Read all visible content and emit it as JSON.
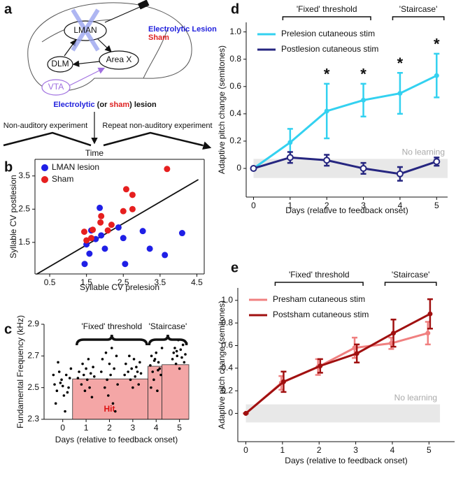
{
  "panel_labels": [
    "a",
    "b",
    "c",
    "d",
    "e"
  ],
  "diagram": {
    "nuclei": [
      "LMAN",
      "DLM",
      "Area X",
      "VTA"
    ],
    "legend": [
      "Electrolytic Lesion",
      "Sham"
    ],
    "lesion_line": [
      "Electrolytic",
      " (or ",
      "sham",
      ") lesion"
    ],
    "experiments": [
      "Non-auditory experiment",
      "Repeat non-auditory experiment"
    ],
    "time_label": "Time"
  },
  "chart_data": [
    {
      "type": "scatter",
      "xlabel": "Syllable CV prelesion",
      "ylabel": "Syllable CV postlesion",
      "xlim": [
        0.1,
        4.7
      ],
      "ylim": [
        0.55,
        4.0
      ],
      "xticks": [
        0.5,
        1.5,
        2.5,
        3.5,
        4.5
      ],
      "yticks": [
        1.5,
        2.5,
        3.5
      ],
      "legend": "upper left",
      "series": [
        {
          "name": "LMAN lesion",
          "color": "#1f1fe6",
          "x": [
            1.86,
            2.37,
            2.5,
            3.03,
            4.1,
            3.63,
            3.22,
            1.9,
            1.63,
            1.58,
            1.5,
            2.0,
            1.75,
            1.45,
            2.55
          ],
          "y": [
            2.54,
            1.95,
            1.63,
            1.84,
            1.78,
            1.12,
            1.31,
            1.71,
            1.86,
            1.16,
            1.44,
            1.31,
            1.6,
            0.85,
            0.85
          ]
        },
        {
          "name": "Sham",
          "color": "#e61f1f",
          "x": [
            3.69,
            2.58,
            2.75,
            2.5,
            2.08,
            1.88,
            1.67,
            1.44,
            1.5,
            1.9,
            1.63,
            2.75,
            2.18
          ],
          "y": [
            3.71,
            3.1,
            2.93,
            2.44,
            1.86,
            2.1,
            1.88,
            1.82,
            1.56,
            2.29,
            1.63,
            2.5,
            2.03
          ]
        }
      ],
      "fit_line": {
        "x": [
          0.14,
          4.54
        ],
        "y": [
          0.54,
          3.39
        ]
      }
    },
    {
      "type": "jitter",
      "xlabel": "Days (relative to feedback onset)",
      "ylabel": "Fundamental Frequency (kHz)",
      "xlim": [
        -0.8,
        5.4
      ],
      "ylim": [
        2.3,
        2.9
      ],
      "xticks": [
        0,
        1,
        2,
        3,
        4,
        5
      ],
      "yticks": [
        2.3,
        2.5,
        2.7,
        2.9
      ],
      "color": "#000000",
      "x": [
        -0.35,
        -0.25,
        -0.15,
        -0.05,
        0.05,
        0.15,
        0.25,
        0.35,
        -0.3,
        -0.1,
        0.1,
        0.3,
        -0.2,
        0.2,
        0,
        -0.4,
        0.65,
        0.7,
        0.8,
        0.85,
        0.9,
        0.95,
        1,
        1.05,
        1.1,
        1.15,
        1.2,
        1.25,
        1.3,
        1.35,
        1.65,
        1.7,
        1.8,
        1.85,
        1.9,
        1.95,
        2,
        2.05,
        2.1,
        2.15,
        2.2,
        2.25,
        2.3,
        2.35,
        2.65,
        2.7,
        2.8,
        2.85,
        2.9,
        2.95,
        3,
        3.05,
        3.1,
        3.15,
        3.2,
        3.25,
        3.3,
        3.35,
        3.75,
        3.8,
        3.85,
        3.9,
        3.95,
        4,
        4.05,
        4.1,
        4.15,
        4.2,
        4.25,
        3.78,
        3.92,
        4.08,
        4.7,
        4.75,
        4.8,
        4.85,
        4.9,
        4.95,
        5,
        5.05,
        5.1,
        5.15,
        5.2,
        5.25,
        5.3,
        4.88
      ],
      "y": [
        2.52,
        2.48,
        2.6,
        2.55,
        2.45,
        2.58,
        2.5,
        2.62,
        2.4,
        2.53,
        2.35,
        2.56,
        2.66,
        2.47,
        2.51,
        2.58,
        2.56,
        2.6,
        2.52,
        2.65,
        2.58,
        2.48,
        2.62,
        2.55,
        2.68,
        2.5,
        2.59,
        2.44,
        2.63,
        2.57,
        2.6,
        2.68,
        2.5,
        2.72,
        2.55,
        2.45,
        2.65,
        2.58,
        2.75,
        2.4,
        2.62,
        2.35,
        2.7,
        2.52,
        2.58,
        2.65,
        2.6,
        2.7,
        2.55,
        2.62,
        2.5,
        2.68,
        2.57,
        2.63,
        2.6,
        2.52,
        2.66,
        2.59,
        2.64,
        2.7,
        2.6,
        2.55,
        2.68,
        2.72,
        2.48,
        2.66,
        2.62,
        2.58,
        2.75,
        2.5,
        2.67,
        2.61,
        2.68,
        2.72,
        2.75,
        2.65,
        2.7,
        2.8,
        2.62,
        2.74,
        2.69,
        2.77,
        2.66,
        2.71,
        2.78,
        2.73
      ],
      "thresholds": {
        "color": "#f4a6a6",
        "label": "Hit",
        "bars": [
          {
            "x": [
              0.42,
              3.65
            ],
            "value": 2.555
          },
          {
            "x": [
              3.65,
              4.25
            ],
            "value": 2.635
          },
          {
            "x": [
              4.25,
              5.4
            ],
            "value": 2.645
          }
        ]
      },
      "braces": [
        {
          "label": "'Fixed' threshold",
          "x": [
            0.6,
            3.6
          ]
        },
        {
          "label": "'Staircase'",
          "x": [
            3.7,
            5.3
          ]
        }
      ]
    },
    {
      "type": "line",
      "xlabel": "Days (relative to feedback onset)",
      "ylabel": "Adaptive pitch change (semitones)",
      "xlim": [
        -0.2,
        5.3
      ],
      "ylim": [
        -0.21,
        1.07
      ],
      "xticks": [
        0,
        1,
        2,
        3,
        4,
        5
      ],
      "yticks": [
        0,
        0.2,
        0.4,
        0.6,
        0.8,
        {
          "value": 1.0,
          "label": "1.0"
        }
      ],
      "legend": "upper left",
      "series": [
        {
          "name": "Prelesion cutaneous stim",
          "color": "#33d1f0",
          "marker": "dot",
          "x": [
            0,
            1,
            2,
            3,
            4,
            5
          ],
          "values": [
            0,
            0.19,
            0.42,
            0.5,
            0.55,
            0.68
          ],
          "errors": [
            0,
            0.1,
            0.2,
            0.12,
            0.15,
            0.16
          ]
        },
        {
          "name": "Postlesion cutaneous stim",
          "color": "#262680",
          "marker": "open",
          "x": [
            0,
            1,
            2,
            3,
            4,
            5
          ],
          "values": [
            0,
            0.08,
            0.06,
            0,
            -0.04,
            0.05
          ],
          "errors": [
            0,
            0.04,
            0.04,
            0.04,
            0.05,
            0.03
          ]
        }
      ],
      "stars": {
        "text": "*",
        "x": [
          2,
          3,
          4,
          5
        ]
      },
      "no_learning": {
        "label": "No learning",
        "x": [
          0,
          5.3
        ],
        "y": [
          -0.07,
          0.07
        ]
      },
      "brackets": [
        {
          "label": "'Fixed' threshold",
          "x": [
            0.8,
            3.2
          ]
        },
        {
          "label": "'Staircase'",
          "x": [
            3.8,
            5.2
          ]
        }
      ]
    },
    {
      "type": "line",
      "xlabel": "Days (relative to feedback onset)",
      "ylabel": "Adaptive pitch change (semitones)",
      "xlim": [
        -0.22,
        5.7
      ],
      "ylim": [
        -0.25,
        1.11
      ],
      "xticks": [
        0,
        1,
        2,
        3,
        4,
        5
      ],
      "yticks": [
        0,
        0.2,
        0.4,
        0.6,
        0.8,
        {
          "value": 1.0,
          "label": "1.0"
        }
      ],
      "legend": "upper left",
      "series": [
        {
          "name": "Presham cutaneous stim",
          "color": "#f08080",
          "marker": "dot",
          "x": [
            0,
            0.97,
            1.97,
            2.97,
            3.97,
            4.97
          ],
          "values": [
            0,
            0.27,
            0.41,
            0.58,
            0.62,
            0.71
          ],
          "errors": [
            0,
            0.06,
            0.07,
            0.09,
            0.05,
            0.1
          ]
        },
        {
          "name": "Postsham cutaneous stim",
          "color": "#a01010",
          "marker": "dot",
          "x": [
            0,
            1.03,
            2.03,
            3.03,
            4.03,
            5.03
          ],
          "values": [
            0,
            0.28,
            0.42,
            0.53,
            0.71,
            0.88
          ],
          "errors": [
            0,
            0.09,
            0.06,
            0.08,
            0.12,
            0.13
          ]
        }
      ],
      "no_learning": {
        "label": "No learning",
        "x": [
          0,
          5.3
        ],
        "y": [
          -0.08,
          0.08
        ]
      },
      "brackets": [
        {
          "label": "'Fixed' threshold",
          "x": [
            0.8,
            3.2
          ]
        },
        {
          "label": "'Staircase'",
          "x": [
            3.8,
            5.2
          ]
        }
      ]
    }
  ]
}
